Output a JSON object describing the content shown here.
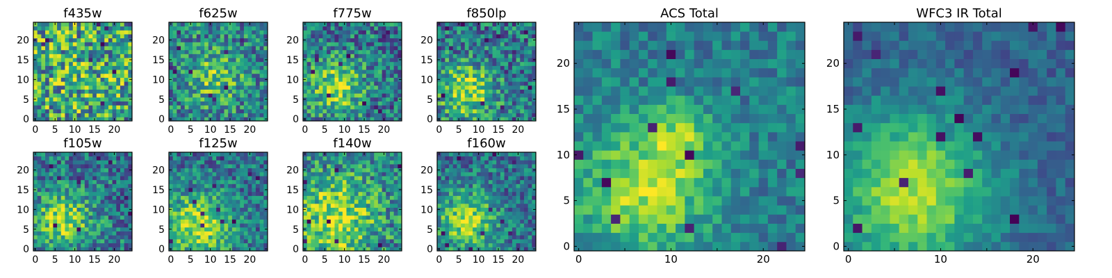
{
  "figure": {
    "colormap": "viridis",
    "colors": {
      "background": "#ffffff",
      "axes": "#000000"
    }
  },
  "chart_data": [
    {
      "type": "heatmap",
      "title": "f435w",
      "grid": false,
      "xlim": [
        0,
        24
      ],
      "ylim": [
        0,
        24
      ],
      "x_ticks": [
        "0",
        "5",
        "10",
        "15",
        "20"
      ],
      "y_ticks": [
        "0",
        "5",
        "10",
        "15",
        "20"
      ],
      "peak": {
        "x": 11,
        "y": 12
      },
      "spread": 9,
      "signal": 0.1,
      "noise": 0.4,
      "base": 0.55,
      "seed": 11,
      "dark_pixels": 8
    },
    {
      "type": "heatmap",
      "title": "f625w",
      "grid": false,
      "xlim": [
        0,
        24
      ],
      "ylim": [
        0,
        24
      ],
      "x_ticks": [
        "0",
        "5",
        "10",
        "15",
        "20"
      ],
      "y_ticks": [
        "0",
        "5",
        "10",
        "15",
        "20"
      ],
      "peak": {
        "x": 11,
        "y": 11
      },
      "spread": 5,
      "signal": 0.3,
      "noise": 0.3,
      "base": 0.45,
      "seed": 23,
      "dark_pixels": 10
    },
    {
      "type": "heatmap",
      "title": "f775w",
      "grid": false,
      "xlim": [
        0,
        24
      ],
      "ylim": [
        0,
        24
      ],
      "x_ticks": [
        "0",
        "5",
        "10",
        "15",
        "20"
      ],
      "y_ticks": [
        "0",
        "5",
        "10",
        "15",
        "20"
      ],
      "peak": {
        "x": 8,
        "y": 8
      },
      "spread": 5,
      "signal": 0.45,
      "noise": 0.3,
      "base": 0.4,
      "seed": 37,
      "dark_pixels": 14
    },
    {
      "type": "heatmap",
      "title": "f850lp",
      "grid": false,
      "xlim": [
        0,
        24
      ],
      "ylim": [
        0,
        24
      ],
      "x_ticks": [
        "0",
        "5",
        "10",
        "15",
        "20"
      ],
      "y_ticks": [
        "0",
        "5",
        "10",
        "15",
        "20"
      ],
      "peak": {
        "x": 7,
        "y": 7
      },
      "spread": 5,
      "signal": 0.45,
      "noise": 0.3,
      "base": 0.4,
      "seed": 41,
      "dark_pixels": 12
    },
    {
      "type": "heatmap",
      "title": "f105w",
      "grid": false,
      "xlim": [
        0,
        24
      ],
      "ylim": [
        0,
        24
      ],
      "x_ticks": [
        "0",
        "5",
        "10",
        "15",
        "20"
      ],
      "y_ticks": [
        "0",
        "5",
        "10",
        "15",
        "20"
      ],
      "peak": {
        "x": 7,
        "y": 7
      },
      "spread": 5,
      "signal": 0.45,
      "noise": 0.28,
      "base": 0.4,
      "seed": 53,
      "dark_pixels": 10
    },
    {
      "type": "heatmap",
      "title": "f125w",
      "grid": false,
      "xlim": [
        0,
        24
      ],
      "ylim": [
        0,
        24
      ],
      "x_ticks": [
        "0",
        "5",
        "10",
        "15",
        "20"
      ],
      "y_ticks": [
        "0",
        "5",
        "10",
        "15",
        "20"
      ],
      "peak": {
        "x": 7,
        "y": 6
      },
      "spread": 6,
      "signal": 0.5,
      "noise": 0.25,
      "base": 0.38,
      "seed": 61,
      "dark_pixels": 12
    },
    {
      "type": "heatmap",
      "title": "f140w",
      "grid": false,
      "xlim": [
        0,
        24
      ],
      "ylim": [
        0,
        24
      ],
      "x_ticks": [
        "0",
        "5",
        "10",
        "15",
        "20"
      ],
      "y_ticks": [
        "0",
        "5",
        "10",
        "15",
        "20"
      ],
      "peak": {
        "x": 8,
        "y": 8
      },
      "spread": 7,
      "signal": 0.45,
      "noise": 0.3,
      "base": 0.45,
      "seed": 73,
      "dark_pixels": 8
    },
    {
      "type": "heatmap",
      "title": "f160w",
      "grid": false,
      "xlim": [
        0,
        24
      ],
      "ylim": [
        0,
        24
      ],
      "x_ticks": [
        "0",
        "5",
        "10",
        "15",
        "20"
      ],
      "y_ticks": [
        "0",
        "5",
        "10",
        "15",
        "20"
      ],
      "peak": {
        "x": 7,
        "y": 7
      },
      "spread": 5,
      "signal": 0.5,
      "noise": 0.25,
      "base": 0.38,
      "seed": 89,
      "dark_pixels": 10
    },
    {
      "type": "heatmap",
      "title": "ACS Total",
      "grid": false,
      "xlim": [
        0,
        24
      ],
      "ylim": [
        0,
        24
      ],
      "x_ticks": [
        "0",
        "5",
        "10",
        "15",
        "20"
      ],
      "y_ticks": [
        "0",
        "5",
        "10",
        "15",
        "20"
      ],
      "peak": {
        "x": 7,
        "y": 6
      },
      "spread": 5,
      "signal": 0.45,
      "noise": 0.16,
      "base": 0.42,
      "second_peak": {
        "x": 11,
        "y": 12,
        "spread": 2.5,
        "signal": 0.3
      },
      "seed": 97,
      "dark_pixels": 12
    },
    {
      "type": "heatmap",
      "title": "WFC3 IR Total",
      "grid": false,
      "xlim": [
        0,
        24
      ],
      "ylim": [
        0,
        24
      ],
      "x_ticks": [
        "0",
        "5",
        "10",
        "15",
        "20"
      ],
      "y_ticks": [
        "0",
        "5",
        "10",
        "15",
        "20"
      ],
      "peak": {
        "x": 7,
        "y": 6
      },
      "spread": 6,
      "signal": 0.55,
      "noise": 0.12,
      "base": 0.32,
      "seed": 101,
      "dark_pixels": 14
    }
  ]
}
